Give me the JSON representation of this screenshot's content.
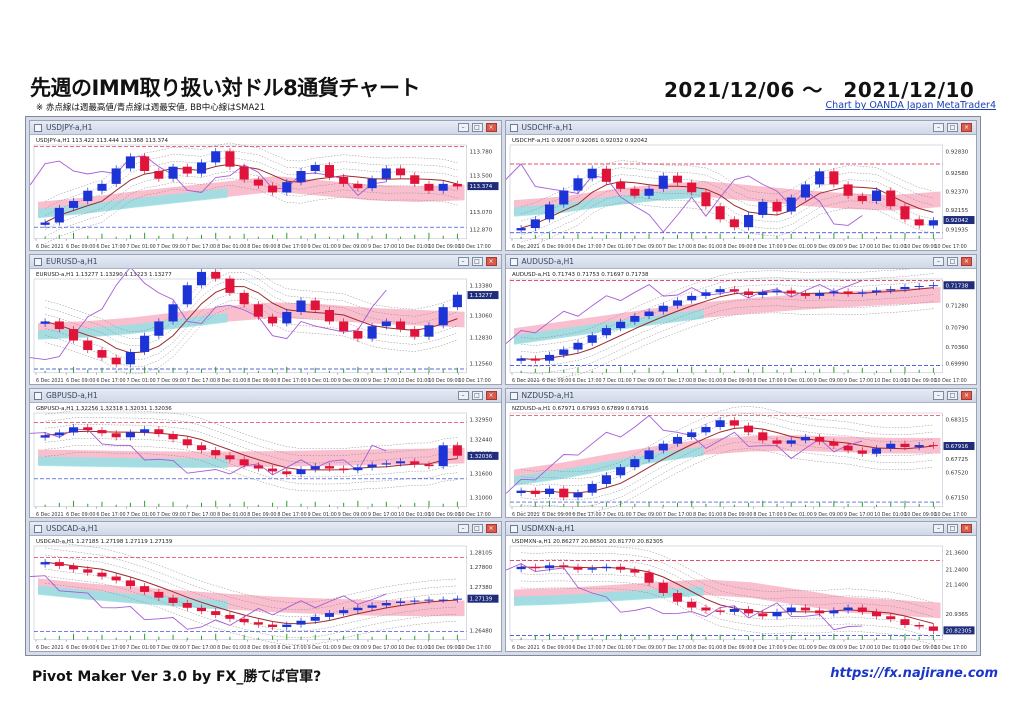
{
  "page": {
    "title": "先週のIMM取り扱い対ドル8通貨チャート",
    "note": "※ 赤点線は週最高値/青点線は週最安値, BB中心線はSMA21",
    "date_range": "2021/12/06 ～　2021/12/10",
    "credit": "Chart by OANDA Japan MetaTrader4",
    "footer_left": "Pivot Maker Ver 3.0 by FX_勝てば官軍?",
    "footer_right": "https://fx.najirane.com"
  },
  "colors": {
    "bull": "#1c33d6",
    "bear": "#e0143a",
    "kumo_bear": "#f7a9bd",
    "kumo_bull": "#8fe3e6",
    "bb_mid": "#9b2a2a",
    "bb_bands": "#8a8a8a",
    "chikou": "#a65cd6",
    "week_high": "#e0143a",
    "week_low": "#1c33d6",
    "volume": "#2aa02a"
  },
  "x_ticks": [
    "6 Dec 2021",
    "6 Dec 09:00",
    "6 Dec 17:00",
    "7 Dec 01:00",
    "7 Dec 09:00",
    "7 Dec 17:00",
    "8 Dec 01:00",
    "8 Dec 09:00",
    "8 Dec 17:00",
    "9 Dec 01:00",
    "9 Dec 09:00",
    "9 Dec 17:00",
    "10 Dec 01:00",
    "10 Dec 09:00",
    "10 Dec 17:00"
  ],
  "chart_data": [
    {
      "type": "candlestick",
      "window_title": "USDJPY-a,H1",
      "info": "USDJPY-a,H1 113.422 113.444 113.368 113.374",
      "y_ticks": [
        113.78,
        113.5,
        113.37,
        113.07,
        112.87
      ],
      "last_price": "113.374",
      "closes": [
        112.95,
        113.12,
        113.2,
        113.32,
        113.4,
        113.58,
        113.72,
        113.55,
        113.46,
        113.6,
        113.52,
        113.65,
        113.78,
        113.6,
        113.45,
        113.38,
        113.3,
        113.42,
        113.55,
        113.62,
        113.48,
        113.4,
        113.35,
        113.46,
        113.58,
        113.5,
        113.4,
        113.32,
        113.4,
        113.37
      ],
      "kumo": [
        113.1,
        113.15,
        113.22,
        113.28,
        113.34,
        113.4,
        113.35,
        113.3,
        113.28,
        113.3
      ]
    },
    {
      "type": "candlestick",
      "window_title": "USDCHF-a,H1",
      "info": "USDCHF-a,H1 0.92067 0.92081 0.92032 0.92042",
      "y_ticks": [
        0.9283,
        0.9258,
        0.9237,
        0.92155,
        0.91935
      ],
      "last_price": "0.92042",
      "closes": [
        0.9195,
        0.9205,
        0.9222,
        0.9238,
        0.9252,
        0.9263,
        0.9248,
        0.924,
        0.9232,
        0.924,
        0.9255,
        0.9247,
        0.9236,
        0.922,
        0.9205,
        0.9196,
        0.921,
        0.9225,
        0.9214,
        0.923,
        0.9245,
        0.926,
        0.9245,
        0.9232,
        0.9226,
        0.9238,
        0.922,
        0.9205,
        0.9198,
        0.9204
      ],
      "kumo": [
        0.9218,
        0.9222,
        0.923,
        0.9236,
        0.924,
        0.9235,
        0.923,
        0.9226,
        0.9224,
        0.9228
      ]
    },
    {
      "type": "candlestick",
      "window_title": "EURUSD-a,H1",
      "info": "EURUSD-a,H1 1.13277 1.13290 1.13223 1.13277",
      "y_ticks": [
        1.1338,
        1.13277,
        1.1306,
        1.1283,
        1.1256
      ],
      "last_price": "1.13277",
      "closes": [
        1.13,
        1.1292,
        1.128,
        1.127,
        1.1262,
        1.1255,
        1.1268,
        1.1285,
        1.13,
        1.1318,
        1.1338,
        1.1352,
        1.1345,
        1.133,
        1.1318,
        1.1305,
        1.1298,
        1.131,
        1.1322,
        1.1312,
        1.13,
        1.129,
        1.1282,
        1.1295,
        1.13,
        1.1292,
        1.1284,
        1.1296,
        1.1315,
        1.1328
      ],
      "kumo": [
        1.129,
        1.1292,
        1.1296,
        1.1302,
        1.1308,
        1.1312,
        1.131,
        1.1306,
        1.1304,
        1.1302
      ]
    },
    {
      "type": "candlestick",
      "window_title": "AUDUSD-a,H1",
      "info": "AUDUSD-a,H1 0.71743 0.71753 0.71697 0.71738",
      "y_ticks": [
        0.71738,
        0.7128,
        0.7079,
        0.7036,
        0.6999
      ],
      "last_price": "0.71738",
      "closes": [
        0.701,
        0.7005,
        0.7018,
        0.703,
        0.7045,
        0.7062,
        0.7078,
        0.7092,
        0.7105,
        0.7115,
        0.7128,
        0.714,
        0.715,
        0.7158,
        0.7165,
        0.716,
        0.7152,
        0.7158,
        0.7162,
        0.7155,
        0.715,
        0.7156,
        0.716,
        0.7155,
        0.7158,
        0.7162,
        0.7165,
        0.717,
        0.7172,
        0.7174
      ],
      "kumo": [
        0.706,
        0.7075,
        0.709,
        0.7105,
        0.7118,
        0.7128,
        0.7136,
        0.7142,
        0.7148,
        0.7152
      ]
    },
    {
      "type": "candlestick",
      "window_title": "GBPUSD-a,H1",
      "info": "GBPUSD-a,H1 1.32256 1.32318 1.32031 1.32036",
      "y_ticks": [
        1.3295,
        1.3244,
        1.321,
        1.316,
        1.31
      ],
      "last_price": "1.32036",
      "closes": [
        1.3255,
        1.3262,
        1.3275,
        1.3268,
        1.326,
        1.325,
        1.3262,
        1.327,
        1.3258,
        1.3245,
        1.323,
        1.3218,
        1.3205,
        1.3195,
        1.318,
        1.3172,
        1.3165,
        1.3158,
        1.317,
        1.3178,
        1.3172,
        1.3168,
        1.3175,
        1.3182,
        1.3185,
        1.319,
        1.3182,
        1.3178,
        1.323,
        1.3204
      ],
      "kumo": [
        1.32,
        1.3198,
        1.3196,
        1.3195,
        1.3195,
        1.3196,
        1.3198,
        1.32,
        1.3202,
        1.3204
      ]
    },
    {
      "type": "candlestick",
      "window_title": "NZDUSD-a,H1",
      "info": "NZDUSD-a,H1 0.67971 0.67993 0.67899 0.67916",
      "y_ticks": [
        0.68315,
        0.67916,
        0.67725,
        0.6752,
        0.6715
      ],
      "last_price": "0.67916",
      "closes": [
        0.6725,
        0.672,
        0.6728,
        0.6715,
        0.6722,
        0.6735,
        0.6748,
        0.676,
        0.6772,
        0.6785,
        0.6795,
        0.6805,
        0.6812,
        0.682,
        0.683,
        0.6822,
        0.6812,
        0.68,
        0.6795,
        0.68,
        0.6805,
        0.6798,
        0.6792,
        0.6785,
        0.678,
        0.6788,
        0.6795,
        0.679,
        0.6793,
        0.6792
      ],
      "kumo": [
        0.6745,
        0.6755,
        0.6768,
        0.678,
        0.679,
        0.6795,
        0.6796,
        0.6794,
        0.6792,
        0.6792
      ]
    },
    {
      "type": "candlestick",
      "window_title": "USDCAD-a,H1",
      "info": "USDCAD-a,H1 1.27185 1.27198 1.27119 1.27139",
      "y_ticks": [
        1.28105,
        1.278,
        1.2738,
        1.27139,
        1.2648
      ],
      "last_price": "1.27139",
      "closes": [
        1.279,
        1.2782,
        1.2775,
        1.2768,
        1.276,
        1.2752,
        1.274,
        1.2728,
        1.2716,
        1.2705,
        1.2695,
        1.2688,
        1.268,
        1.2672,
        1.2665,
        1.266,
        1.2655,
        1.266,
        1.2668,
        1.2676,
        1.2684,
        1.269,
        1.2695,
        1.27,
        1.2705,
        1.2708,
        1.271,
        1.2712,
        1.2712,
        1.2714
      ],
      "kumo": [
        1.274,
        1.273,
        1.2722,
        1.2715,
        1.2708,
        1.2702,
        1.2698,
        1.2695,
        1.2694,
        1.2694
      ]
    },
    {
      "type": "candlestick",
      "window_title": "USDMXN-a,H1",
      "info": "USDMXN-a,H1 20.86277 20.86501 20.81770 20.82305",
      "y_ticks": [
        21.36,
        21.24,
        21.14,
        20.9365,
        20.82305
      ],
      "last_price": "20.82305",
      "closes": [
        21.26,
        21.25,
        21.27,
        21.26,
        21.24,
        21.25,
        21.26,
        21.24,
        21.22,
        21.15,
        21.08,
        21.02,
        20.98,
        20.96,
        20.95,
        20.97,
        20.94,
        20.92,
        20.95,
        20.98,
        20.96,
        20.94,
        20.96,
        20.98,
        20.95,
        20.92,
        20.9,
        20.86,
        20.85,
        20.82
      ],
      "kumo": [
        21.05,
        21.06,
        21.08,
        21.1,
        21.12,
        21.1,
        21.05,
        21.0,
        20.98,
        20.96
      ]
    }
  ]
}
